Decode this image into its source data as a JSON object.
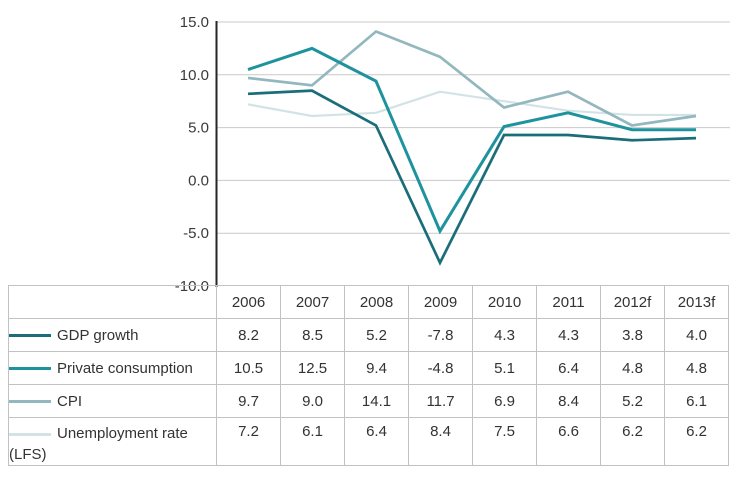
{
  "chart_data": {
    "type": "line",
    "title": "",
    "xlabel": "",
    "ylabel": "",
    "categories": [
      "2006",
      "2007",
      "2008",
      "2009",
      "2010",
      "2011",
      "2012f",
      "2013f"
    ],
    "series": [
      {
        "name": "GDP growth",
        "color": "#1a6d79",
        "values": [
          8.2,
          8.5,
          5.2,
          -7.8,
          4.3,
          4.3,
          3.8,
          4.0
        ]
      },
      {
        "name": "Private consumption",
        "color": "#1e939d",
        "values": [
          10.5,
          12.5,
          9.4,
          -4.8,
          5.1,
          6.4,
          4.8,
          4.8
        ]
      },
      {
        "name": "CPI",
        "color": "#93b7be",
        "values": [
          9.7,
          9.0,
          14.1,
          11.7,
          6.9,
          8.4,
          5.2,
          6.1
        ]
      },
      {
        "name": "Unemployment rate (LFS)",
        "color": "#d3e3e5",
        "values": [
          7.2,
          6.1,
          6.4,
          8.4,
          7.5,
          6.6,
          6.2,
          6.2
        ]
      }
    ],
    "ylim": [
      -10,
      15
    ],
    "y_ticks": [
      15,
      10,
      5,
      0,
      -5,
      -10
    ],
    "y_tick_labels": [
      "15.0",
      "10.0",
      "5.0",
      "0.0",
      "-5.0",
      "-10.0"
    ],
    "grid": true,
    "legend_position": "table-left",
    "axis_color": "#262626",
    "grid_color": "#c9c9c9"
  },
  "table": {
    "columns": [
      "",
      "2006",
      "2007",
      "2008",
      "2009",
      "2010",
      "2011",
      "2012f",
      "2013f"
    ],
    "rows": [
      {
        "label": "GDP growth",
        "values": [
          "8.2",
          "8.5",
          "5.2",
          "-7.8",
          "4.3",
          "4.3",
          "3.8",
          "4.0"
        ]
      },
      {
        "label": "Private consumption",
        "values": [
          "10.5",
          "12.5",
          "9.4",
          "-4.8",
          "5.1",
          "6.4",
          "4.8",
          "4.8"
        ]
      },
      {
        "label": "CPI",
        "values": [
          "9.7",
          "9.0",
          "14.1",
          "11.7",
          "6.9",
          "8.4",
          "5.2",
          "6.1"
        ]
      },
      {
        "label": "Unemployment rate (LFS)",
        "values": [
          "7.2",
          "6.1",
          "6.4",
          "8.4",
          "7.5",
          "6.6",
          "6.2",
          "6.2"
        ]
      }
    ]
  }
}
